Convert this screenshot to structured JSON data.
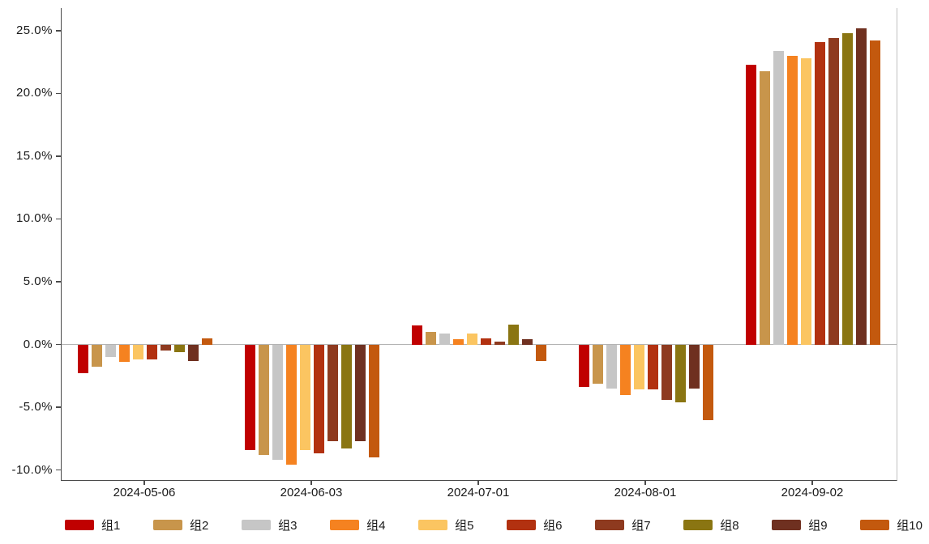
{
  "chart_data": {
    "type": "bar",
    "title": "",
    "xlabel": "",
    "ylabel": "",
    "categories": [
      "2024-05-06",
      "2024-06-03",
      "2024-07-01",
      "2024-08-01",
      "2024-09-02"
    ],
    "series": [
      {
        "name": "组1",
        "color": "#C00000",
        "values": [
          -2.3,
          -8.4,
          1.5,
          -3.4,
          22.3
        ]
      },
      {
        "name": "组2",
        "color": "#C8954B",
        "values": [
          -1.8,
          -8.8,
          1.0,
          -3.1,
          21.8
        ]
      },
      {
        "name": "组3",
        "color": "#C6C6C6",
        "values": [
          -1.0,
          -9.2,
          0.9,
          -3.5,
          23.4
        ]
      },
      {
        "name": "组4",
        "color": "#F58220",
        "values": [
          -1.4,
          -9.6,
          0.4,
          -4.0,
          23.0
        ]
      },
      {
        "name": "组5",
        "color": "#FBC561",
        "values": [
          -1.2,
          -8.4,
          0.9,
          -3.6,
          22.8
        ]
      },
      {
        "name": "组6",
        "color": "#B23110",
        "values": [
          -1.2,
          -8.7,
          0.5,
          -3.6,
          24.1
        ]
      },
      {
        "name": "组7",
        "color": "#8E3A1F",
        "values": [
          -0.5,
          -7.7,
          0.2,
          -4.4,
          24.4
        ]
      },
      {
        "name": "组8",
        "color": "#8A7512",
        "values": [
          -0.6,
          -8.3,
          1.6,
          -4.6,
          24.8
        ]
      },
      {
        "name": "组9",
        "color": "#6F3020",
        "values": [
          -1.3,
          -7.7,
          0.4,
          -3.5,
          25.2
        ]
      },
      {
        "name": "组10",
        "color": "#C3590E",
        "values": [
          0.5,
          -9.0,
          -1.3,
          -6.0,
          24.2
        ]
      }
    ],
    "y_axis": {
      "tick_values": [
        25,
        20,
        15,
        10,
        5,
        0,
        -5,
        -10
      ],
      "tick_labels": [
        "25.0%",
        "20.0%",
        "15.0%",
        "10.0%",
        "5.0%",
        "0.0%",
        "-5.0%",
        "-10.0%"
      ],
      "ylim": [
        -10.8,
        26.8
      ],
      "unit": "%"
    },
    "grid": "zero-baseline-only",
    "legend_position": "bottom"
  },
  "colors": {
    "background": "#ffffff",
    "axis": "#4a4a4a",
    "zero_line": "#b3b3b3",
    "text": "#1a1a1a"
  }
}
